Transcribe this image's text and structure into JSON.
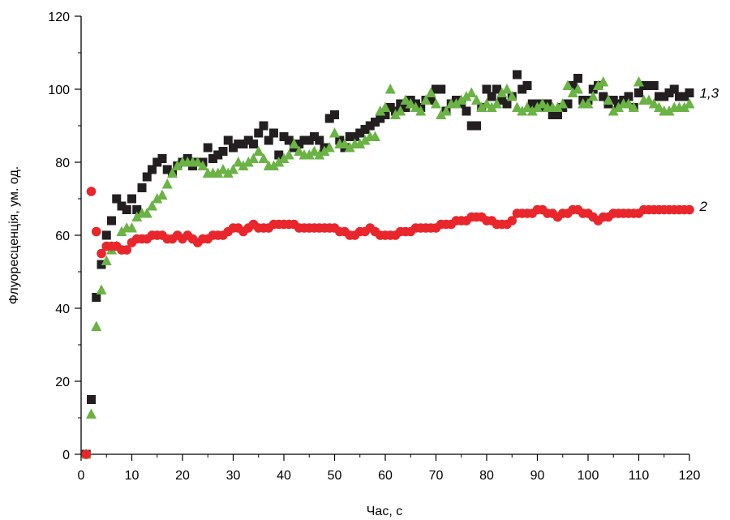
{
  "chart_data": {
    "type": "scatter",
    "title": "",
    "xlabel": "Час, с",
    "ylabel": "Флуоресценція, ум. од.",
    "xlim": [
      0,
      120
    ],
    "ylim": [
      0,
      120
    ],
    "xticks": [
      0,
      10,
      20,
      30,
      40,
      50,
      60,
      70,
      80,
      90,
      100,
      110,
      120
    ],
    "yticks": [
      0,
      20,
      40,
      60,
      80,
      100,
      120
    ],
    "grid": false,
    "series": [
      {
        "name": "1,3",
        "marker": "square",
        "color": "#231f20",
        "x": [
          1,
          2,
          3,
          4,
          5,
          6,
          7,
          8,
          9,
          10,
          11,
          12,
          13,
          14,
          15,
          16,
          17,
          18,
          19,
          20,
          21,
          22,
          23,
          24,
          25,
          26,
          27,
          28,
          29,
          30,
          31,
          32,
          33,
          34,
          35,
          36,
          37,
          38,
          39,
          40,
          41,
          42,
          43,
          44,
          45,
          46,
          47,
          48,
          49,
          50,
          51,
          52,
          53,
          54,
          55,
          56,
          57,
          58,
          59,
          60,
          61,
          62,
          63,
          64,
          65,
          66,
          67,
          68,
          69,
          70,
          71,
          72,
          73,
          74,
          75,
          76,
          77,
          78,
          79,
          80,
          81,
          82,
          83,
          84,
          85,
          86,
          87,
          88,
          89,
          90,
          91,
          92,
          93,
          94,
          95,
          96,
          97,
          98,
          99,
          100,
          101,
          102,
          103,
          104,
          105,
          106,
          107,
          108,
          109,
          110,
          111,
          112,
          113,
          114,
          115,
          116,
          117,
          118,
          119,
          120
        ],
        "y": [
          0,
          15,
          43,
          52,
          60,
          64,
          70,
          68,
          67,
          70,
          67,
          73,
          76,
          78,
          80,
          81,
          78,
          77,
          79,
          80,
          81,
          79,
          80,
          80,
          84,
          81,
          82,
          83,
          86,
          84,
          85,
          85,
          86,
          85,
          88,
          90,
          86,
          88,
          82,
          87,
          86,
          84,
          85,
          86,
          86,
          87,
          86,
          84,
          92,
          93,
          86,
          84,
          87,
          87,
          88,
          89,
          90,
          91,
          92,
          93,
          95,
          94,
          96,
          95,
          97,
          96,
          95,
          97,
          97,
          100,
          100,
          94,
          96,
          97,
          96,
          94,
          90,
          90,
          95,
          100,
          98,
          100,
          97,
          96,
          98,
          104,
          100,
          101,
          96,
          96,
          95,
          96,
          93,
          93,
          95,
          96,
          101,
          103,
          97,
          97,
          100,
          101,
          98,
          96,
          97,
          96,
          97,
          98,
          95,
          99,
          101,
          101,
          101,
          98,
          98,
          99,
          100,
          98,
          98,
          99
        ]
      },
      {
        "name": "",
        "marker": "triangle",
        "color": "#6ab344",
        "x": [
          1,
          2,
          3,
          4,
          5,
          6,
          7,
          8,
          9,
          10,
          11,
          12,
          13,
          14,
          15,
          16,
          17,
          18,
          19,
          20,
          21,
          22,
          23,
          24,
          25,
          26,
          27,
          28,
          29,
          30,
          31,
          32,
          33,
          34,
          35,
          36,
          37,
          38,
          39,
          40,
          41,
          42,
          43,
          44,
          45,
          46,
          47,
          48,
          49,
          50,
          51,
          52,
          53,
          54,
          55,
          56,
          57,
          58,
          59,
          60,
          61,
          62,
          63,
          64,
          65,
          66,
          67,
          68,
          69,
          70,
          71,
          72,
          73,
          74,
          75,
          76,
          77,
          78,
          79,
          80,
          81,
          82,
          83,
          84,
          85,
          86,
          87,
          88,
          89,
          90,
          91,
          92,
          93,
          94,
          95,
          96,
          97,
          98,
          99,
          100,
          101,
          102,
          103,
          104,
          105,
          106,
          107,
          108,
          109,
          110,
          111,
          112,
          113,
          114,
          115,
          116,
          117,
          118,
          119,
          120
        ],
        "y": [
          0,
          11,
          35,
          45,
          53,
          56,
          57,
          61,
          62,
          62,
          65,
          66,
          66,
          68,
          70,
          71,
          74,
          77,
          79,
          80,
          80,
          80,
          80,
          79,
          77,
          77,
          77,
          78,
          77,
          78,
          80,
          79,
          80,
          81,
          83,
          81,
          79,
          79,
          80,
          81,
          82,
          85,
          83,
          82,
          82,
          83,
          82,
          83,
          84,
          88,
          85,
          85,
          84,
          85,
          85,
          86,
          87,
          87,
          94,
          95,
          100,
          93,
          94,
          97,
          96,
          95,
          94,
          97,
          99,
          96,
          93,
          94,
          96,
          96,
          97,
          98,
          99,
          97,
          95,
          96,
          95,
          96,
          99,
          100,
          98,
          95,
          94,
          95,
          94,
          95,
          96,
          95,
          95,
          95,
          96,
          101,
          99,
          100,
          96,
          96,
          98,
          101,
          102,
          97,
          94,
          95,
          96,
          96,
          95,
          102,
          97,
          97,
          96,
          95,
          94,
          94,
          95,
          95,
          95,
          96
        ]
      },
      {
        "name": "2",
        "marker": "circle",
        "color": "#e8262b",
        "x": [
          1,
          2,
          3,
          4,
          5,
          6,
          7,
          8,
          9,
          10,
          11,
          12,
          13,
          14,
          15,
          16,
          17,
          18,
          19,
          20,
          21,
          22,
          23,
          24,
          25,
          26,
          27,
          28,
          29,
          30,
          31,
          32,
          33,
          34,
          35,
          36,
          37,
          38,
          39,
          40,
          41,
          42,
          43,
          44,
          45,
          46,
          47,
          48,
          49,
          50,
          51,
          52,
          53,
          54,
          55,
          56,
          57,
          58,
          59,
          60,
          61,
          62,
          63,
          64,
          65,
          66,
          67,
          68,
          69,
          70,
          71,
          72,
          73,
          74,
          75,
          76,
          77,
          78,
          79,
          80,
          81,
          82,
          83,
          84,
          85,
          86,
          87,
          88,
          89,
          90,
          91,
          92,
          93,
          94,
          95,
          96,
          97,
          98,
          99,
          100,
          101,
          102,
          103,
          104,
          105,
          106,
          107,
          108,
          109,
          110,
          111,
          112,
          113,
          114,
          115,
          116,
          117,
          118,
          119,
          120
        ],
        "y": [
          0,
          72,
          61,
          55,
          57,
          57,
          57,
          56,
          56,
          58,
          59,
          59,
          59,
          60,
          60,
          60,
          59,
          59,
          60,
          59,
          60,
          59,
          58,
          59,
          59,
          60,
          60,
          60,
          61,
          62,
          62,
          61,
          62,
          63,
          62,
          62,
          62,
          63,
          63,
          63,
          63,
          63,
          62,
          62,
          62,
          62,
          62,
          62,
          62,
          62,
          61,
          61,
          60,
          60,
          61,
          61,
          62,
          61,
          60,
          60,
          60,
          60,
          61,
          61,
          61,
          62,
          62,
          62,
          62,
          62,
          63,
          63,
          63,
          64,
          64,
          64,
          65,
          65,
          65,
          64,
          64,
          63,
          63,
          63,
          64,
          66,
          66,
          66,
          66,
          67,
          67,
          66,
          66,
          65,
          66,
          66,
          67,
          67,
          66,
          66,
          65,
          64,
          65,
          65,
          66,
          66,
          66,
          66,
          66,
          66,
          67,
          67,
          67,
          67,
          67,
          67,
          67,
          67,
          67,
          67
        ]
      }
    ],
    "annotations": [
      {
        "text": "1,3",
        "x": 122,
        "y": 99
      },
      {
        "text": "2",
        "x": 122,
        "y": 68
      }
    ]
  }
}
